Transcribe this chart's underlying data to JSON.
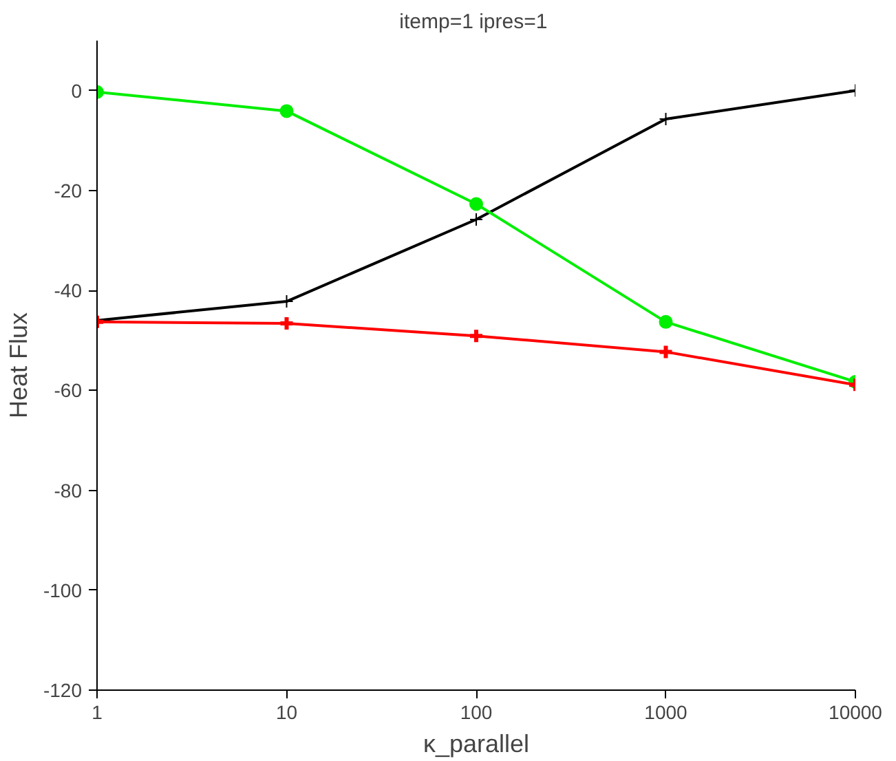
{
  "chart_data": {
    "type": "line",
    "title": "itemp=1  ipres=1",
    "xlabel": "κ_parallel",
    "ylabel": "Heat Flux",
    "x": [
      1,
      10,
      100,
      1000,
      10000
    ],
    "log": "x",
    "xlim": [
      1,
      10000
    ],
    "xticks": [
      1,
      10,
      100,
      1000,
      10000
    ],
    "ylim": [
      -120,
      10
    ],
    "yticks": [
      -120,
      -100,
      -80,
      -60,
      -40,
      -20,
      0
    ],
    "grid": false,
    "line_style": "solid",
    "series": [
      {
        "color": "#000000",
        "marker": "cross",
        "values": [
          -46,
          -42.2,
          -25.8,
          -5.7,
          0
        ]
      },
      {
        "color": "#00ee00",
        "marker": "circle",
        "values": [
          -0.3,
          -4.1,
          -22.7,
          -46.3,
          -58.3
        ]
      },
      {
        "color": "#ff0000",
        "marker": "cross",
        "values": [
          -46.3,
          -46.6,
          -49.1,
          -52.3,
          -58.9
        ]
      }
    ]
  }
}
